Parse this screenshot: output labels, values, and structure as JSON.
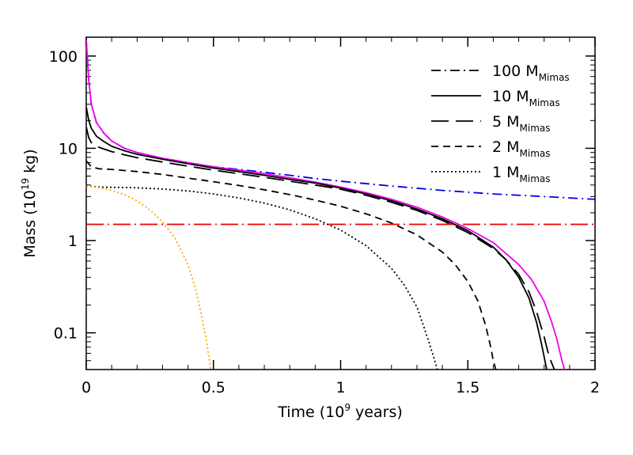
{
  "chart_data": {
    "type": "line",
    "xlabel": "Time (10",
    "xlabel_exp": "9",
    "xlabel_tail": " years)",
    "ylabel": "Mass (10",
    "ylabel_exp": "19",
    "ylabel_tail": " kg)",
    "xlim": [
      0,
      2
    ],
    "ylim": [
      0.04,
      160
    ],
    "yscale": "log",
    "x_ticks": [
      {
        "value": 0,
        "label": "0"
      },
      {
        "value": 0.5,
        "label": "0.5"
      },
      {
        "value": 1,
        "label": "1"
      },
      {
        "value": 1.5,
        "label": "1.5"
      },
      {
        "value": 2,
        "label": "2"
      }
    ],
    "y_ticks": [
      {
        "value": 0.1,
        "label": "0.1"
      },
      {
        "value": 1,
        "label": "1"
      },
      {
        "value": 10,
        "label": "10"
      },
      {
        "value": 100,
        "label": "100"
      }
    ],
    "legend": [
      {
        "label": "100 M",
        "sub": "Mimas",
        "dash": "12,5,2,5"
      },
      {
        "label": "10 M",
        "sub": "Mimas",
        "dash": ""
      },
      {
        "label": "5 M",
        "sub": "Mimas",
        "dash": "22,9"
      },
      {
        "label": "2 M",
        "sub": "Mimas",
        "dash": "9,6"
      },
      {
        "label": "1 M",
        "sub": "Mimas",
        "dash": "2,3"
      }
    ],
    "series": [
      {
        "name": "100 MMimas",
        "color": "#0000ee",
        "dash": "12,5,2,5",
        "x": [
          0.0,
          0.01,
          0.02,
          0.04,
          0.07,
          0.1,
          0.15,
          0.2,
          0.3,
          0.4,
          0.5,
          0.6,
          0.7,
          0.8,
          0.9,
          1.0,
          1.2,
          1.4,
          1.6,
          1.8,
          2.0
        ],
        "y": [
          150,
          55,
          30,
          19,
          14.5,
          12,
          10,
          9,
          7.8,
          7,
          6.3,
          5.9,
          5.5,
          5.1,
          4.7,
          4.4,
          3.9,
          3.5,
          3.2,
          3.0,
          2.8
        ]
      },
      {
        "name": "magenta",
        "color": "#ee00ee",
        "dash": "",
        "x": [
          0.0,
          0.01,
          0.02,
          0.04,
          0.07,
          0.1,
          0.15,
          0.2,
          0.3,
          0.4,
          0.5,
          0.6,
          0.7,
          0.8,
          0.9,
          1.0,
          1.1,
          1.2,
          1.3,
          1.4,
          1.5,
          1.6,
          1.7,
          1.75,
          1.8,
          1.83,
          1.85,
          1.87,
          1.88
        ],
        "y": [
          150,
          55,
          30,
          19,
          14.5,
          12,
          10,
          9,
          7.8,
          7,
          6.3,
          5.8,
          5.3,
          4.8,
          4.3,
          3.8,
          3.3,
          2.8,
          2.3,
          1.8,
          1.35,
          0.95,
          0.55,
          0.38,
          0.22,
          0.13,
          0.085,
          0.05,
          0.04
        ]
      },
      {
        "name": "10 MMimas",
        "color": "#000000",
        "dash": "",
        "x": [
          0.0,
          0.01,
          0.02,
          0.04,
          0.07,
          0.1,
          0.15,
          0.2,
          0.3,
          0.4,
          0.5,
          0.6,
          0.7,
          0.8,
          0.9,
          1.0,
          1.1,
          1.2,
          1.3,
          1.4,
          1.5,
          1.6,
          1.65,
          1.7,
          1.74,
          1.77,
          1.79,
          1.8,
          1.81
        ],
        "y": [
          28,
          20,
          16.5,
          13.5,
          11.8,
          10.5,
          9.4,
          8.6,
          7.6,
          6.8,
          6.1,
          5.6,
          5.1,
          4.6,
          4.2,
          3.7,
          3.2,
          2.7,
          2.2,
          1.72,
          1.28,
          0.85,
          0.62,
          0.4,
          0.24,
          0.13,
          0.075,
          0.055,
          0.04
        ]
      },
      {
        "name": "5 MMimas",
        "color": "#000000",
        "dash": "22,9",
        "x": [
          0.0,
          0.01,
          0.02,
          0.04,
          0.07,
          0.1,
          0.15,
          0.2,
          0.3,
          0.4,
          0.5,
          0.6,
          0.7,
          0.8,
          0.9,
          1.0,
          1.1,
          1.2,
          1.3,
          1.4,
          1.5,
          1.6,
          1.65,
          1.7,
          1.74,
          1.77,
          1.8,
          1.82,
          1.84
        ],
        "y": [
          17,
          13,
          11.5,
          10.5,
          9.8,
          9.2,
          8.5,
          7.9,
          7.1,
          6.4,
          5.8,
          5.3,
          4.85,
          4.4,
          4.0,
          3.6,
          3.1,
          2.6,
          2.12,
          1.65,
          1.22,
          0.82,
          0.62,
          0.43,
          0.28,
          0.17,
          0.09,
          0.055,
          0.04
        ]
      },
      {
        "name": "2 MMimas",
        "color": "#000000",
        "dash": "9,6",
        "x": [
          0.0,
          0.02,
          0.05,
          0.1,
          0.2,
          0.3,
          0.4,
          0.5,
          0.6,
          0.7,
          0.8,
          0.9,
          1.0,
          1.1,
          1.2,
          1.3,
          1.4,
          1.45,
          1.5,
          1.54,
          1.57,
          1.59,
          1.6,
          1.61
        ],
        "y": [
          7.3,
          6.3,
          6.0,
          5.9,
          5.6,
          5.2,
          4.75,
          4.35,
          3.95,
          3.55,
          3.15,
          2.75,
          2.35,
          1.95,
          1.55,
          1.15,
          0.75,
          0.55,
          0.36,
          0.22,
          0.12,
          0.07,
          0.05,
          0.04
        ]
      },
      {
        "name": "1 MMimas",
        "color": "#000000",
        "dash": "2,3",
        "x": [
          0.0,
          0.05,
          0.1,
          0.2,
          0.3,
          0.4,
          0.5,
          0.6,
          0.7,
          0.8,
          0.9,
          1.0,
          1.1,
          1.2,
          1.25,
          1.3,
          1.33,
          1.35,
          1.37,
          1.38
        ],
        "y": [
          3.9,
          3.8,
          3.78,
          3.73,
          3.62,
          3.45,
          3.2,
          2.9,
          2.55,
          2.15,
          1.72,
          1.3,
          0.88,
          0.5,
          0.33,
          0.19,
          0.11,
          0.075,
          0.05,
          0.04
        ]
      },
      {
        "name": "orange",
        "color": "#ffa500",
        "dash": "2,3",
        "x": [
          0.0,
          0.05,
          0.1,
          0.15,
          0.2,
          0.25,
          0.3,
          0.35,
          0.4,
          0.43,
          0.45,
          0.47,
          0.48,
          0.49
        ],
        "y": [
          3.9,
          3.75,
          3.5,
          3.15,
          2.7,
          2.15,
          1.6,
          1.05,
          0.55,
          0.3,
          0.17,
          0.09,
          0.06,
          0.04
        ]
      },
      {
        "name": "red",
        "color": "#ee0000",
        "dash": "22,5,2,5",
        "x": [
          0.0,
          2.0
        ],
        "y": [
          1.5,
          1.5
        ]
      }
    ]
  }
}
